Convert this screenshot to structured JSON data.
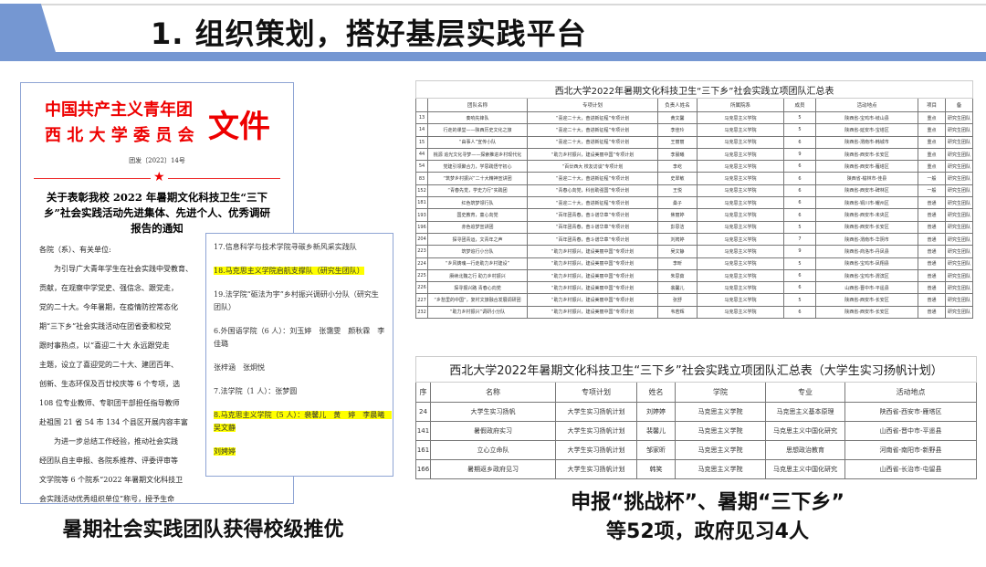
{
  "slide": {
    "title": "1. 组织策划，搭好基层实践平台",
    "accent": "#7597d2"
  },
  "document": {
    "org_line1": "中国共产主义青年团",
    "org_line2": "西 北 大 学 委 员 会",
    "wen": "文件",
    "doc_no": "团发〔2022〕14号",
    "heading": "关于表彰我校 2022 年暑期文化科技卫生“三下乡”社会实践活动先进集体、先进个人、优秀调研报告的通知",
    "body": [
      "各院（系）、有关单位:",
      "　　为引导广大青年学生在社会实践中受教育、",
      "贡献，在观察中学党史、强信念、跟党走，",
      "党的二十大。今年暑期，在疫情防控常态化",
      "期“三下乡”社会实践活动在团省委和校党",
      "跟时事热点，以“喜迎二十大 永远跟党走",
      "主题，设立了喜迎党的二十大、建团百年、",
      "创新、生态环保及百廿校庆等 6 个专项，选",
      "108 位专业教师、专职团干部担任指导教师",
      "赴祖国 21 省 54 市 134 个县区开展内容丰富",
      "　　为进一步总结工作经验，推动社会实践",
      "经团队自主申报、各院系推荐、评委评审等",
      "文学院等 6 个院系“2022 年暑期文化科技卫",
      "会实践活动优秀组织单位”称号，授予生命"
    ]
  },
  "overlay": {
    "lines": [
      "17.信息科学与技术学院寻碳乡新风采实践队",
      "18.马克思主义学院启航支撑队（研究生团队）",
      "19.法学院“砺法为宇”乡村振兴调研小分队（研究生团队）",
      "6.外国语学院（6 人）：刘玉婷　张霭雯　颜秋霖　李佳璐",
      "张梓涵　张炯悦",
      "7.法学院（1 人）：张梦圆",
      "8.马克思主义学院（5 人）：裴馨儿　黄　婷　李晨曦　吴文静",
      "刘娉婷"
    ],
    "highlighted": [
      1,
      6,
      7
    ]
  },
  "table1": {
    "title": "西北大学2022年暑期文化科技卫生“三下乡”社会实践立项团队汇总表",
    "headers": [
      "",
      "团队名称",
      "专项计划",
      "负责人姓名",
      "所属院系",
      "成员",
      "活动地点",
      "项目",
      "备"
    ],
    "rows": [
      [
        "13",
        "奏响先锋队",
        "“喜迎二十大，奋进新征程”专项计划",
        "黄文馨",
        "马克思主义学院",
        "5",
        "陕西省-宝鸡市-岐山县",
        "重点",
        "研究生团队"
      ],
      [
        "14",
        "行走的课堂——陕西历史文化之旅",
        "“喜迎二十大，奋进新征程”专项计划",
        "李佳玲",
        "马克思主义学院",
        "5",
        "陕西省-延安市-宝塔区",
        "重点",
        "研究生团队"
      ],
      [
        "15",
        "“由事人”宣传小队",
        "“喜迎二十大，奋进新征程”专项计划",
        "王丽丽",
        "马克思主义学院",
        "6",
        "陕西省-渭南市-韩城市",
        "重点",
        "研究生团队"
      ],
      [
        "44",
        "桃源 追光文化寻梦——探索推进乡村现代化",
        "“助力乡村振兴，建设美丽中国”专项计划",
        "李晨曦",
        "马克思主义学院",
        "9",
        "陕西省-西安市-长安区",
        "重点",
        "研究生团队"
      ],
      [
        "54",
        "党建引领聚合力，学思践悟守初心",
        "“百廿西大 校友访谈”专项计划",
        "李屹",
        "马克思主义学院",
        "6",
        "陕西省-西安市-雁塔区",
        "重点",
        "研究生团队"
      ],
      [
        "83",
        "“筑梦乡村振兴”二十大精神宣讲团",
        "“喜迎二十大，奋进新征程”专项计划",
        "史翠敏",
        "马克思主义学院",
        "6",
        "陕西省-榆林市-佳县",
        "一般",
        "研究生团队"
      ],
      [
        "152",
        "“青春先觉，学史力行”实践团",
        "“青春心向党，科创助强国”专项计划",
        "王悦",
        "马克思主义学院",
        "6",
        "陕西省-西安市-碑林区",
        "一般",
        "研究生团队"
      ],
      [
        "181",
        "红色筑梦领行队",
        "“喜迎二十大，奋进新征程”专项计划",
        "桑子",
        "马克思主义学院",
        "6",
        "陕西省-铜川市-耀州区",
        "普通",
        "研究生团队"
      ],
      [
        "193",
        "国史教育，童心向党",
        "“百年团青春，奋斗谱华章”专项计划",
        "焦丽婷",
        "马克思主义学院",
        "6",
        "陕西省-西安市-未央区",
        "普通",
        "研究生团队"
      ],
      [
        "196",
        "赤色追梦宣讲团",
        "“百年团青春，奋斗谱华章”专项计划",
        "彭思洁",
        "马克思主义学院",
        "5",
        "陕西省-西安市-长安区",
        "普通",
        "研究生团队"
      ],
      [
        "204",
        "探寻团青运，文青年之声",
        "“百年团青春，奋斗谱华章”专项计划",
        "刘娉婷",
        "马克思主义学院",
        "7",
        "陕西省-渭南市-华阴市",
        "普通",
        "研究生团队"
      ],
      [
        "223",
        "筑梦追行小分队",
        "“助力乡村振兴，建设美丽中国”专项计划",
        "吴文静",
        "马克思主义学院",
        "9",
        "陕西省-商洛市-丹凤县",
        "普通",
        "研究生团队"
      ],
      [
        "224",
        "“乡风铸魂—行走助力乡村建设”",
        "“助力乡村振兴，建设美丽中国”专项计划",
        "李昕",
        "马克思主义学院",
        "5",
        "陕西省-宝鸡市-凤翔县",
        "普通",
        "研究生团队"
      ],
      [
        "225",
        "赓续北魏之行 助力乡村振兴",
        "“助力乡村振兴，建设美丽中国”专项计划",
        "朱思茹",
        "马克思主义学院",
        "6",
        "陕西省-宝鸡市-渭滨区",
        "普通",
        "研究生团队"
      ],
      [
        "226",
        "探寻振兴路 青春心向党",
        "“助力乡村振兴，建设美丽中国”专项计划",
        "裴馨儿",
        "马克思主义学院",
        "6",
        "山西省-晋中市-平遥县",
        "普通",
        "研究生团队"
      ],
      [
        "227",
        "“乡愁里的中国”，复村文旅融合发展调研团",
        "“助力乡村振兴，建设美丽中国”专项计划",
        "张舒",
        "马克思主义学院",
        "5",
        "陕西省-西安市-长安区",
        "普通",
        "研究生团队"
      ],
      [
        "232",
        "“助力乡村振兴”调研小分队",
        "“助力乡村振兴，建设美丽中国”专项计划",
        "韦若辉",
        "马克思主义学院",
        "6",
        "陕西省-西安市-长安区",
        "普通",
        "研究生团队"
      ]
    ]
  },
  "table2": {
    "title": "西北大学2022年暑期文化科技卫生“三下乡”社会实践立项团队汇总表（大学生实习扬帆计划）",
    "headers": [
      "序",
      "名称",
      "专项计划",
      "姓名",
      "学院",
      "专业",
      "活动地点"
    ],
    "rows": [
      [
        "24",
        "大学生实习扬帆",
        "大学生实习扬帆计划",
        "刘婷婷",
        "马克思主义学院",
        "马克思主义基本原理",
        "陕西省-西安市-雁塔区"
      ],
      [
        "141",
        "暑假政府实习",
        "大学生实习扬帆计划",
        "裴馨儿",
        "马克思主义学院",
        "马克思主义中国化研究",
        "山西省-晋中市-平遥县"
      ],
      [
        "161",
        "立心立命队",
        "大学生实习扬帆计划",
        "邹家昕",
        "马克思主义学院",
        "思想政治教育",
        "河南省-南阳市-新野县"
      ],
      [
        "166",
        "暑期返乡政府见习",
        "大学生实习扬帆计划",
        "韩笑",
        "马克思主义学院",
        "马克思主义中国化研究",
        "山西省-长治市-屯留县"
      ]
    ]
  },
  "captions": {
    "left": "暑期社会实践团队获得校级推优",
    "right_line1": "申报“挑战杯”、暑期“三下乡”",
    "right_line2": "等52项，政府见习4人"
  }
}
